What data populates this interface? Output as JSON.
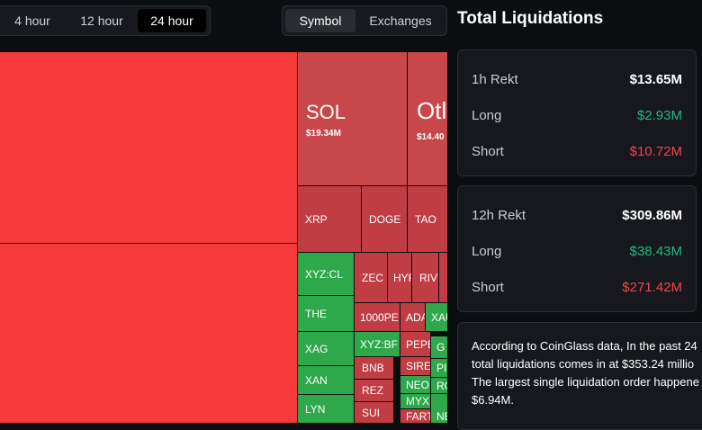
{
  "tabs": {
    "time": [
      "4 hour",
      "12 hour",
      "24 hour"
    ],
    "view": [
      "Symbol",
      "Exchanges"
    ]
  },
  "treemap": {
    "tiles": [
      {
        "label": "SOL",
        "value": "$19.34M"
      },
      {
        "label": "Otl",
        "value": "$14.40"
      },
      {
        "label": "XRP"
      },
      {
        "label": "DOGE"
      },
      {
        "label": "TAO"
      },
      {
        "label": "XYZ:CL"
      },
      {
        "label": "THE"
      },
      {
        "label": "XAG"
      },
      {
        "label": "XAN"
      },
      {
        "label": "LYN"
      },
      {
        "label": "ZEC"
      },
      {
        "label": "HYF"
      },
      {
        "label": "RIV"
      },
      {
        "label": "1000PE"
      },
      {
        "label": "ADA"
      },
      {
        "label": "XAU"
      },
      {
        "label": "XYZ:BF"
      },
      {
        "label": "PEPE"
      },
      {
        "label": "G"
      },
      {
        "label": "BNB"
      },
      {
        "label": "SIRE"
      },
      {
        "label": "PI"
      },
      {
        "label": "REZ"
      },
      {
        "label": "NEO"
      },
      {
        "label": "RO"
      },
      {
        "label": "SUI"
      },
      {
        "label": "MYX"
      },
      {
        "label": "FART"
      },
      {
        "label": "NE"
      }
    ]
  },
  "panel": {
    "title": "Total Liquidations",
    "cards": [
      {
        "rows": [
          [
            "1h Rekt",
            "$13.65M"
          ],
          [
            "Long",
            "$2.93M"
          ],
          [
            "Short",
            "$10.72M"
          ]
        ]
      },
      {
        "rows": [
          [
            "12h Rekt",
            "$309.86M"
          ],
          [
            "Long",
            "$38.43M"
          ],
          [
            "Short",
            "$271.42M"
          ]
        ]
      }
    ],
    "note": [
      "According to CoinGlass data, In the past 24",
      "total liquidations comes in at $353.24 millio",
      "The largest single liquidation order happene",
      "$6.94M."
    ]
  }
}
